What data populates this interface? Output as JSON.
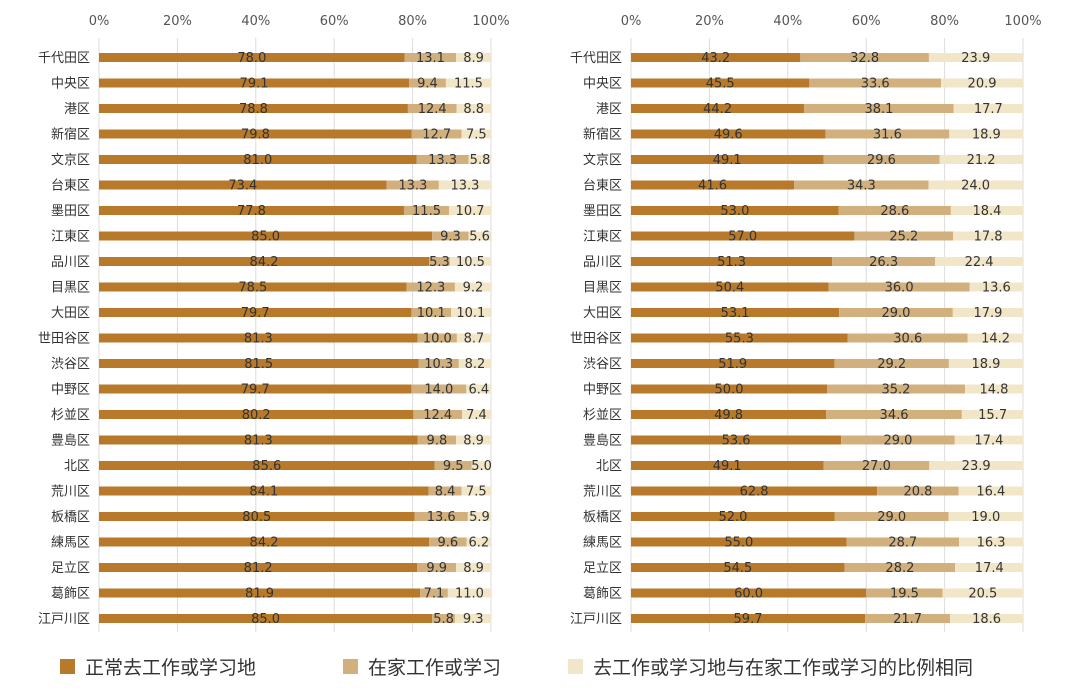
{
  "chart_data": [
    {
      "type": "bar",
      "orientation": "horizontal",
      "stacked": true,
      "categories": [
        "千代田区",
        "中央区",
        "港区",
        "新宿区",
        "文京区",
        "台東区",
        "墨田区",
        "江東区",
        "品川区",
        "目黒区",
        "大田区",
        "世田谷区",
        "渋谷区",
        "中野区",
        "杉並区",
        "豊島区",
        "北区",
        "荒川区",
        "板橋区",
        "練馬区",
        "足立区",
        "葛飾区",
        "江戸川区"
      ],
      "xlim": [
        0,
        100
      ],
      "xticks": [
        "0%",
        "20%",
        "40%",
        "60%",
        "80%",
        "100%"
      ],
      "series": [
        {
          "name": "正常去工作或学习地",
          "values": [
            "78.0",
            "79.1",
            "78.8",
            "79.8",
            "81.0",
            "73.4",
            "77.8",
            "85.0",
            "84.2",
            "78.5",
            "79.7",
            "81.3",
            "81.5",
            "79.7",
            "80.2",
            "81.3",
            "85.6",
            "84.1",
            "80.5",
            "84.2",
            "81.2",
            "81.9",
            "85.0"
          ]
        },
        {
          "name": "在家工作或学习",
          "values": [
            "13.1",
            "9.4",
            "12.4",
            "12.7",
            "13.3",
            "13.3",
            "11.5",
            "9.3",
            "5.3",
            "12.3",
            "10.1",
            "10.0",
            "10.3",
            "14.0",
            "12.4",
            "9.8",
            "9.5",
            "8.4",
            "13.6",
            "9.6",
            "9.9",
            "7.1",
            "5.8"
          ]
        },
        {
          "name": "去工作或学习地与在家工作或学习的比例相同",
          "values": [
            "8.9",
            "11.5",
            "8.8",
            "7.5",
            "5.8",
            "13.3",
            "10.7",
            "5.6",
            "10.5",
            "9.2",
            "10.1",
            "8.7",
            "8.2",
            "6.4",
            "7.4",
            "8.9",
            "5.0",
            "7.5",
            "5.9",
            "6.2",
            "8.9",
            "11.0",
            "9.3"
          ]
        }
      ]
    },
    {
      "type": "bar",
      "orientation": "horizontal",
      "stacked": true,
      "categories": [
        "千代田区",
        "中央区",
        "港区",
        "新宿区",
        "文京区",
        "台東区",
        "墨田区",
        "江東区",
        "品川区",
        "目黒区",
        "大田区",
        "世田谷区",
        "渋谷区",
        "中野区",
        "杉並区",
        "豊島区",
        "北区",
        "荒川区",
        "板橋区",
        "練馬区",
        "足立区",
        "葛飾区",
        "江戸川区"
      ],
      "xlim": [
        0,
        100
      ],
      "xticks": [
        "0%",
        "20%",
        "40%",
        "60%",
        "80%",
        "100%"
      ],
      "series": [
        {
          "name": "正常去工作或学习地",
          "values": [
            "43.2",
            "45.5",
            "44.2",
            "49.6",
            "49.1",
            "41.6",
            "53.0",
            "57.0",
            "51.3",
            "50.4",
            "53.1",
            "55.3",
            "51.9",
            "50.0",
            "49.8",
            "53.6",
            "49.1",
            "62.8",
            "52.0",
            "55.0",
            "54.5",
            "60.0",
            "59.7"
          ]
        },
        {
          "name": "在家工作或学习",
          "values": [
            "32.8",
            "33.6",
            "38.1",
            "31.6",
            "29.6",
            "34.3",
            "28.6",
            "25.2",
            "26.3",
            "36.0",
            "29.0",
            "30.6",
            "29.2",
            "35.2",
            "34.6",
            "29.0",
            "27.0",
            "20.8",
            "29.0",
            "28.7",
            "28.2",
            "19.5",
            "21.7"
          ]
        },
        {
          "name": "去工作或学习地与在家工作或学习的比例相同",
          "values": [
            "23.9",
            "20.9",
            "17.7",
            "18.9",
            "21.2",
            "24.0",
            "18.4",
            "17.8",
            "22.4",
            "13.6",
            "17.9",
            "14.2",
            "18.9",
            "14.8",
            "15.7",
            "17.4",
            "23.9",
            "16.4",
            "19.0",
            "16.3",
            "17.4",
            "20.5",
            "18.6"
          ]
        }
      ]
    }
  ],
  "legend": {
    "items": [
      {
        "label": "正常去工作或学习地",
        "color": "#b87a2a"
      },
      {
        "label": "在家工作或学习",
        "color": "#d1b07e"
      },
      {
        "label": "去工作或学习地与在家工作或学习的比例相同",
        "color": "#f1e7c8"
      }
    ]
  },
  "colors": [
    "#b87a2a",
    "#d1b07e",
    "#f1e7c8"
  ]
}
